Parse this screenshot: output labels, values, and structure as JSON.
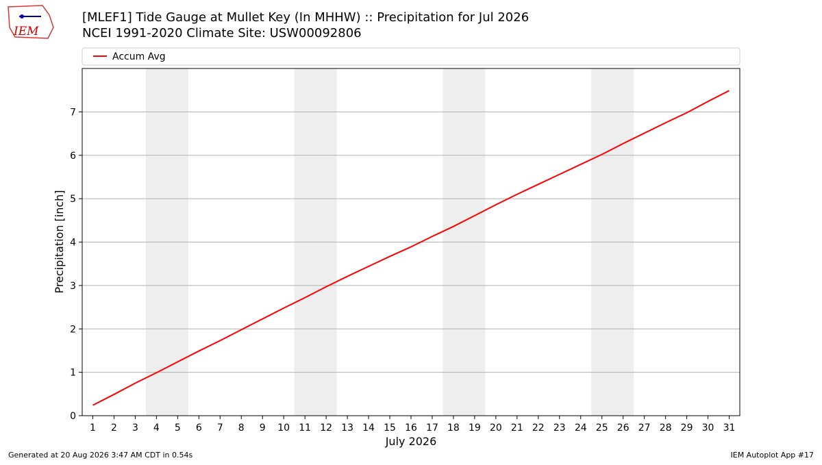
{
  "chart_data": {
    "type": "line",
    "title": "[MLEF1] Tide Gauge at Mullet Key (In MHHW) :: Precipitation for Jul 2026",
    "subtitle": "NCEI 1991-2020 Climate Site: USW00092806",
    "x_label": "July 2026",
    "y_label": "Precipitation [inch]",
    "x": [
      1,
      2,
      3,
      4,
      5,
      6,
      7,
      8,
      9,
      10,
      11,
      12,
      13,
      14,
      15,
      16,
      17,
      18,
      19,
      20,
      21,
      22,
      23,
      24,
      25,
      26,
      27,
      28,
      29,
      30,
      31
    ],
    "series": [
      {
        "name": "Accum Avg",
        "color": "#ff0000",
        "values": [
          0.24,
          0.49,
          0.75,
          0.99,
          1.24,
          1.49,
          1.73,
          1.98,
          2.23,
          2.48,
          2.72,
          2.97,
          3.21,
          3.44,
          3.67,
          3.89,
          4.13,
          4.36,
          4.61,
          4.86,
          5.1,
          5.33,
          5.56,
          5.79,
          6.02,
          6.27,
          6.51,
          6.75,
          6.98,
          7.24,
          7.49
        ]
      }
    ],
    "xlim": [
      0.5,
      31.5
    ],
    "xticks": [
      1,
      2,
      3,
      4,
      5,
      6,
      7,
      8,
      9,
      10,
      11,
      12,
      13,
      14,
      15,
      16,
      17,
      18,
      19,
      20,
      21,
      22,
      23,
      24,
      25,
      26,
      27,
      28,
      29,
      30,
      31
    ],
    "ylim": [
      0,
      8
    ],
    "yticks": [
      0,
      1,
      2,
      3,
      4,
      5,
      6,
      7
    ],
    "grid": true,
    "shaded_spans": [
      [
        3.5,
        5.5
      ],
      [
        10.5,
        12.5
      ],
      [
        17.5,
        19.5
      ],
      [
        24.5,
        26.5
      ]
    ],
    "shade_color": "#eeeeee",
    "legend": "top"
  },
  "logo": "IEM",
  "footer_left": "Generated at 20 Aug 2026 3:47 AM CDT in 0.54s",
  "footer_right": "IEM Autoplot App #17"
}
